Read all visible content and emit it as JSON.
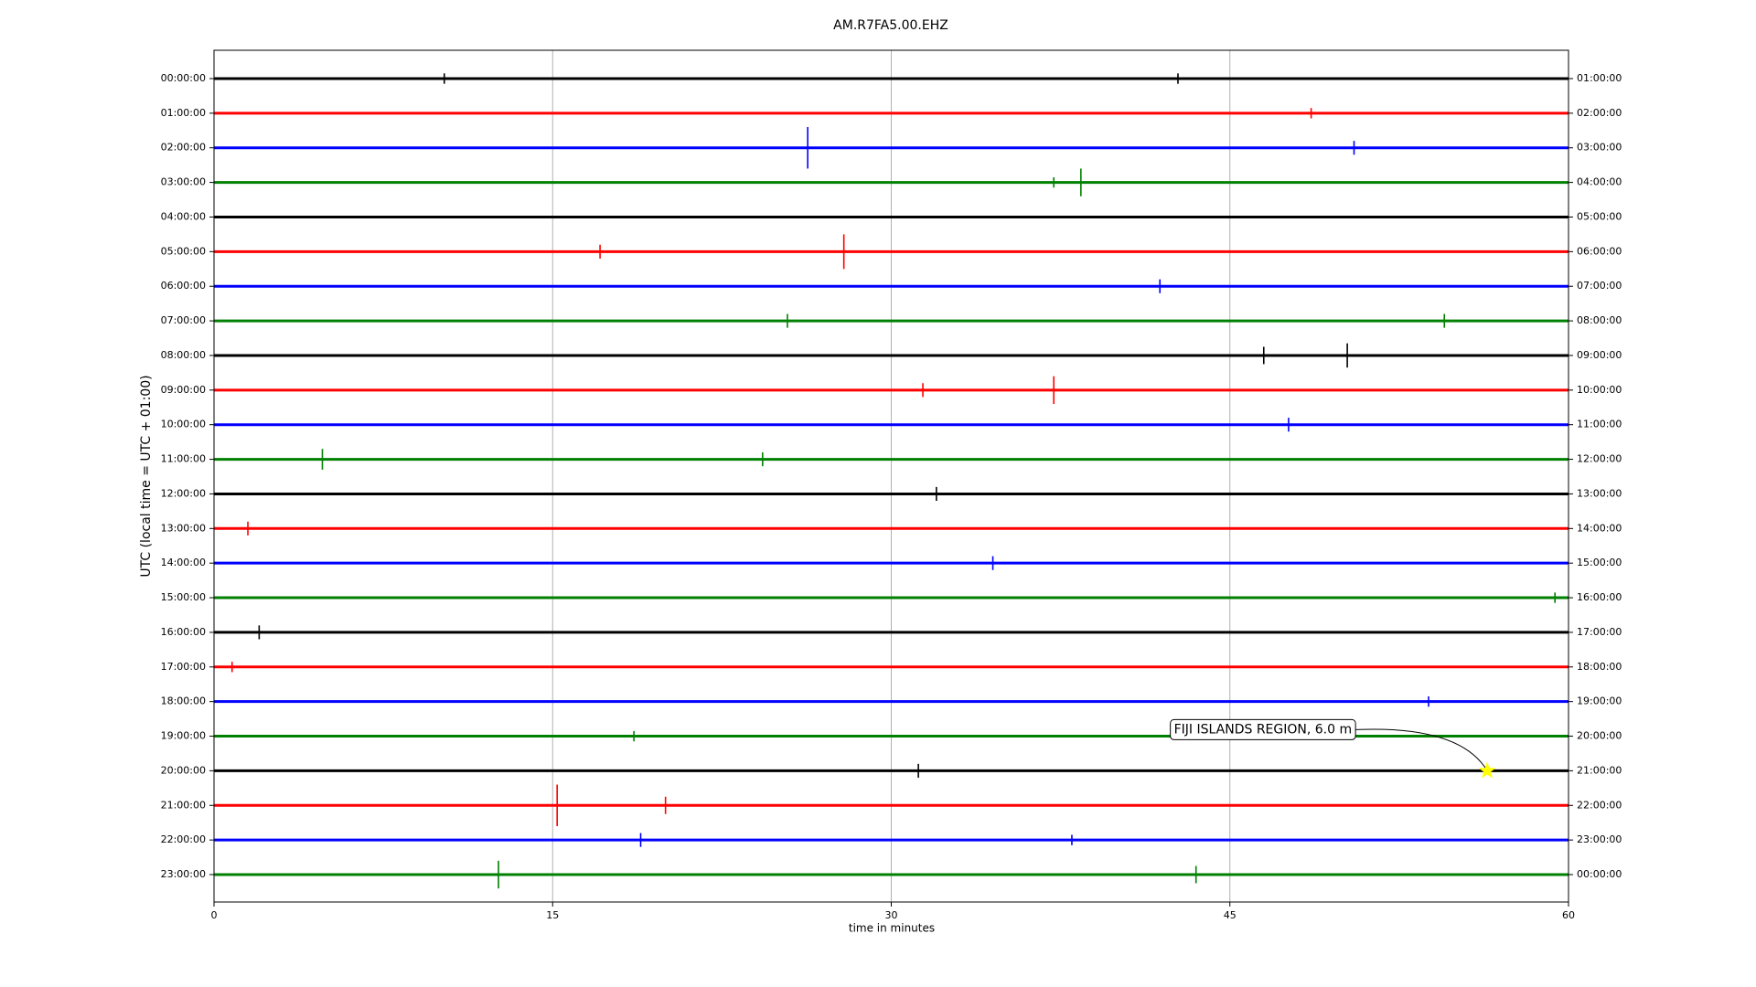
{
  "chart_data": {
    "type": "dayplot",
    "title": "AM.R7FA5.00.EHZ",
    "xlabel": "time in minutes",
    "ylabel": "UTC (local time = UTC + 01:00)",
    "xlim": [
      0,
      60
    ],
    "xticks": [
      0,
      15,
      30,
      45,
      60
    ],
    "grid": true,
    "colors": [
      "#000000",
      "#ff0000",
      "#0000ff",
      "#008000"
    ],
    "rows": [
      {
        "left": "00:00:00",
        "right": "01:00:00",
        "events": [
          {
            "x": 10.2,
            "amp": 0.15
          },
          {
            "x": 42.7,
            "amp": 0.15
          }
        ]
      },
      {
        "left": "01:00:00",
        "right": "02:00:00",
        "events": [
          {
            "x": 48.6,
            "amp": 0.15
          }
        ]
      },
      {
        "left": "02:00:00",
        "right": "03:00:00",
        "events": [
          {
            "x": 26.3,
            "amp": 0.6
          },
          {
            "x": 50.5,
            "amp": 0.2
          }
        ]
      },
      {
        "left": "03:00:00",
        "right": "04:00:00",
        "events": [
          {
            "x": 38.4,
            "amp": 0.4
          },
          {
            "x": 37.2,
            "amp": 0.15
          }
        ]
      },
      {
        "left": "04:00:00",
        "right": "05:00:00",
        "events": []
      },
      {
        "left": "05:00:00",
        "right": "06:00:00",
        "events": [
          {
            "x": 27.9,
            "amp": 0.5
          },
          {
            "x": 17.1,
            "amp": 0.2
          }
        ]
      },
      {
        "left": "06:00:00",
        "right": "07:00:00",
        "events": [
          {
            "x": 41.9,
            "amp": 0.2
          }
        ]
      },
      {
        "left": "07:00:00",
        "right": "08:00:00",
        "events": [
          {
            "x": 25.4,
            "amp": 0.2
          },
          {
            "x": 54.5,
            "amp": 0.2
          }
        ]
      },
      {
        "left": "08:00:00",
        "right": "09:00:00",
        "events": [
          {
            "x": 50.2,
            "amp": 0.35
          },
          {
            "x": 46.5,
            "amp": 0.25
          }
        ]
      },
      {
        "left": "09:00:00",
        "right": "10:00:00",
        "events": [
          {
            "x": 37.2,
            "amp": 0.4
          },
          {
            "x": 31.4,
            "amp": 0.2
          }
        ]
      },
      {
        "left": "10:00:00",
        "right": "11:00:00",
        "events": [
          {
            "x": 47.6,
            "amp": 0.2
          }
        ]
      },
      {
        "left": "11:00:00",
        "right": "12:00:00",
        "events": [
          {
            "x": 4.8,
            "amp": 0.3
          },
          {
            "x": 24.3,
            "amp": 0.2
          }
        ]
      },
      {
        "left": "12:00:00",
        "right": "13:00:00",
        "events": [
          {
            "x": 32.0,
            "amp": 0.2
          }
        ]
      },
      {
        "left": "13:00:00",
        "right": "14:00:00",
        "events": [
          {
            "x": 1.5,
            "amp": 0.2
          }
        ]
      },
      {
        "left": "14:00:00",
        "right": "15:00:00",
        "events": [
          {
            "x": 34.5,
            "amp": 0.2
          }
        ]
      },
      {
        "left": "15:00:00",
        "right": "16:00:00",
        "events": [
          {
            "x": 59.4,
            "amp": 0.15
          }
        ]
      },
      {
        "left": "16:00:00",
        "right": "17:00:00",
        "events": [
          {
            "x": 2.0,
            "amp": 0.2
          }
        ]
      },
      {
        "left": "17:00:00",
        "right": "18:00:00",
        "events": [
          {
            "x": 0.8,
            "amp": 0.15
          }
        ]
      },
      {
        "left": "18:00:00",
        "right": "19:00:00",
        "events": [
          {
            "x": 53.8,
            "amp": 0.15
          }
        ]
      },
      {
        "left": "19:00:00",
        "right": "20:00:00",
        "events": [
          {
            "x": 18.6,
            "amp": 0.15
          }
        ]
      },
      {
        "left": "20:00:00",
        "right": "21:00:00",
        "events": [
          {
            "x": 31.2,
            "amp": 0.2
          }
        ]
      },
      {
        "left": "21:00:00",
        "right": "22:00:00",
        "events": [
          {
            "x": 15.2,
            "amp": 0.6
          },
          {
            "x": 20.0,
            "amp": 0.25
          }
        ]
      },
      {
        "left": "22:00:00",
        "right": "23:00:00",
        "events": [
          {
            "x": 18.9,
            "amp": 0.2
          },
          {
            "x": 38.0,
            "amp": 0.15
          }
        ]
      },
      {
        "left": "23:00:00",
        "right": "00:00:00",
        "events": [
          {
            "x": 12.6,
            "amp": 0.4
          },
          {
            "x": 43.5,
            "amp": 0.25
          }
        ]
      }
    ],
    "annotation": {
      "text": "FIJI ISLANDS REGION, 6.0 m",
      "row": 20,
      "x": 56.4
    }
  }
}
